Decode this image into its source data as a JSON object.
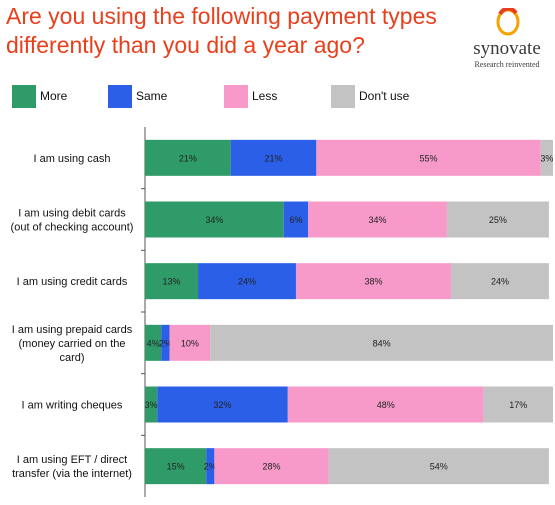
{
  "header": {
    "title_line1": "Are you using the following payment types",
    "title_line2": "differently than you did a year ago?",
    "logo_name": "synovate",
    "logo_tagline": "Research reinvented",
    "logo_icon": "synovate-ring-icon"
  },
  "colors": {
    "title": "#e8401c",
    "More": "#2e9b68",
    "Same": "#2b5fe8",
    "Less": "#f79ac9",
    "Don't use": "#c3c3c3"
  },
  "chart_data": {
    "type": "bar",
    "orientation": "horizontal",
    "stacked": true,
    "xlim": [
      0,
      100
    ],
    "grid": false,
    "legend": "top",
    "categories": [
      [
        "I am using cash"
      ],
      [
        "I am using debit cards",
        "(out of checking account)"
      ],
      [
        "I am using credit cards"
      ],
      [
        "I am using prepaid cards",
        "(money carried on the",
        "card)"
      ],
      [
        "I am writing cheques"
      ],
      [
        "I am using EFT / direct",
        "transfer (via the internet)"
      ]
    ],
    "series": [
      {
        "name": "More",
        "values": [
          21,
          34,
          13,
          4,
          3,
          15
        ],
        "labels": [
          "21%",
          "34%",
          "13%",
          "4%",
          "3%",
          "15%"
        ]
      },
      {
        "name": "Same",
        "values": [
          21,
          6,
          24,
          2,
          32,
          2
        ],
        "labels": [
          "21%",
          "6%",
          "24%",
          "2%",
          "32%",
          "2%"
        ]
      },
      {
        "name": "Less",
        "values": [
          55,
          34,
          38,
          10,
          48,
          28
        ],
        "labels": [
          "55%",
          "34%",
          "38%",
          "10%",
          "48%",
          "28%"
        ]
      },
      {
        "name": "Don't use",
        "values": [
          3,
          25,
          24,
          84,
          17,
          54
        ],
        "labels": [
          "3%",
          "25%",
          "24%",
          "84%",
          "17%",
          "54%"
        ]
      }
    ]
  }
}
